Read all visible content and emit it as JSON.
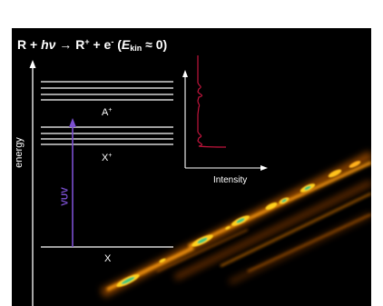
{
  "title": {
    "reactant": "R + ",
    "hv": "hν",
    "arrow_products": " → R",
    "plus": "+",
    "electron": " + e",
    "minus": "-",
    "ekin_open": " (",
    "ekin_E": "E",
    "ekin_sub": "kin",
    "ekin_close": " ≈ 0)"
  },
  "diagram": {
    "axis_label": "energy",
    "excitation_label": "VUV",
    "spectrum_axis_label": "Intensity",
    "levels": {
      "cation_excited_base": "A",
      "cation_excited_sup": "+",
      "cation_ground_base": "X",
      "cation_ground_sup": "+",
      "neutral_ground": "X"
    }
  },
  "colors": {
    "background": "#000000",
    "text": "#ffffff",
    "vuv_arrow": "#7b4fd0",
    "spectrum_trace": "#c0143c",
    "streak_outer": "#ff8c00",
    "streak_inner": "#ffd21e",
    "streak_core": "#3fc87a"
  }
}
